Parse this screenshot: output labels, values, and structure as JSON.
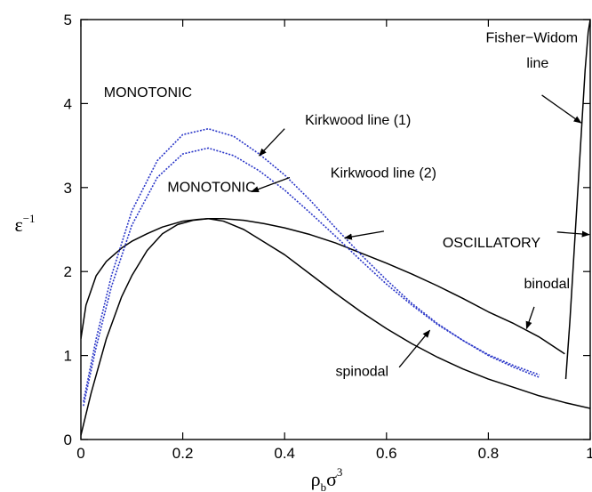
{
  "chart_data": {
    "type": "line",
    "xlim": [
      0,
      1
    ],
    "ylim": [
      0,
      5
    ],
    "x_ticks": [
      0,
      0.2,
      0.4,
      0.6,
      0.8,
      1
    ],
    "x_tick_labels": [
      "0",
      "0.2",
      "0.4",
      "0.6",
      "0.8",
      "1"
    ],
    "y_ticks": [
      0,
      1,
      2,
      3,
      4,
      5
    ],
    "y_tick_labels": [
      "0",
      "1",
      "2",
      "3",
      "4",
      "5"
    ],
    "xlabel": {
      "base": "ρ",
      "sub": "b",
      "mid": "σ",
      "sup": "3"
    },
    "ylabel": {
      "base": "ε",
      "sup": "−1"
    },
    "grid": false,
    "legend": "none",
    "series": [
      {
        "color": "#000000",
        "dash": "solid",
        "x": [
          0.0,
          0.01,
          0.03,
          0.05,
          0.08,
          0.1,
          0.13,
          0.16,
          0.2,
          0.23,
          0.25,
          0.28,
          0.32,
          0.36,
          0.4,
          0.45,
          0.5,
          0.55,
          0.6,
          0.65,
          0.7,
          0.75,
          0.8,
          0.85,
          0.9,
          0.95
        ],
        "y": [
          1.2,
          1.6,
          1.95,
          2.12,
          2.28,
          2.36,
          2.45,
          2.53,
          2.6,
          2.62,
          2.63,
          2.63,
          2.61,
          2.57,
          2.52,
          2.44,
          2.34,
          2.22,
          2.1,
          1.97,
          1.83,
          1.68,
          1.52,
          1.38,
          1.22,
          1.02
        ]
      },
      {
        "color": "#000000",
        "dash": "solid",
        "x": [
          0.0,
          0.02,
          0.05,
          0.08,
          0.1,
          0.13,
          0.16,
          0.19,
          0.22,
          0.25,
          0.28,
          0.32,
          0.36,
          0.4,
          0.45,
          0.5,
          0.55,
          0.6,
          0.65,
          0.7,
          0.75,
          0.8,
          0.85,
          0.9,
          0.95,
          1.0
        ],
        "y": [
          0.05,
          0.55,
          1.2,
          1.7,
          1.95,
          2.25,
          2.45,
          2.56,
          2.61,
          2.63,
          2.6,
          2.5,
          2.35,
          2.2,
          1.97,
          1.74,
          1.52,
          1.32,
          1.14,
          0.98,
          0.84,
          0.72,
          0.62,
          0.52,
          0.44,
          0.37
        ]
      },
      {
        "color": "#2a36c8",
        "dash": "dotted",
        "x": [
          0.005,
          0.03,
          0.06,
          0.1,
          0.15,
          0.2,
          0.25,
          0.3,
          0.35,
          0.4,
          0.45,
          0.5,
          0.55,
          0.6,
          0.65,
          0.7,
          0.75,
          0.8,
          0.85,
          0.9
        ],
        "y": [
          0.45,
          1.2,
          1.95,
          2.72,
          3.32,
          3.63,
          3.7,
          3.61,
          3.4,
          3.15,
          2.85,
          2.52,
          2.2,
          1.9,
          1.62,
          1.38,
          1.18,
          1.0,
          0.86,
          0.74
        ]
      },
      {
        "color": "#2a36c8",
        "dash": "dotted",
        "x": [
          0.005,
          0.03,
          0.06,
          0.1,
          0.15,
          0.2,
          0.25,
          0.3,
          0.35,
          0.4,
          0.45,
          0.5,
          0.55,
          0.6,
          0.65,
          0.7,
          0.75,
          0.8,
          0.85,
          0.9
        ],
        "y": [
          0.4,
          1.1,
          1.82,
          2.55,
          3.12,
          3.4,
          3.47,
          3.38,
          3.2,
          2.97,
          2.7,
          2.42,
          2.13,
          1.85,
          1.6,
          1.37,
          1.18,
          1.01,
          0.88,
          0.77
        ]
      },
      {
        "color": "#000000",
        "dash": "solid",
        "x": [
          0.952,
          0.96,
          0.968,
          0.976,
          0.984,
          0.99,
          0.996,
          1.0
        ],
        "y": [
          0.72,
          1.4,
          2.2,
          3.0,
          3.8,
          4.4,
          4.85,
          5.0
        ]
      }
    ],
    "annotations": [
      {
        "text": "MONOTONIC",
        "x": 0.045,
        "y": 4.08
      },
      {
        "text": "MONOTONIC",
        "x": 0.17,
        "y": 2.95
      },
      {
        "text": "OSCILLATORY",
        "x": 0.71,
        "y": 2.29
      },
      {
        "text": "Kirkwood line (1)",
        "x": 0.44,
        "y": 3.75
      },
      {
        "text": "Kirkwood line (2)",
        "x": 0.49,
        "y": 3.12
      },
      {
        "text": "Fisher−Widom",
        "x": 0.795,
        "y": 4.73
      },
      {
        "text": "line",
        "x": 0.875,
        "y": 4.43
      },
      {
        "text": "binodal",
        "x": 0.87,
        "y": 1.8
      },
      {
        "text": "spinodal",
        "x": 0.5,
        "y": 0.76
      }
    ],
    "arrows": [
      {
        "from": [
          0.4,
          3.7
        ],
        "to": [
          0.35,
          3.38
        ]
      },
      {
        "from": [
          0.41,
          3.12
        ],
        "to": [
          0.335,
          2.95
        ]
      },
      {
        "from": [
          0.595,
          2.48
        ],
        "to": [
          0.518,
          2.4
        ]
      },
      {
        "from": [
          0.935,
          2.47
        ],
        "to": [
          0.998,
          2.44
        ]
      },
      {
        "from": [
          0.905,
          4.1
        ],
        "to": [
          0.982,
          3.77
        ]
      },
      {
        "from": [
          0.89,
          1.58
        ],
        "to": [
          0.875,
          1.32
        ]
      },
      {
        "from": [
          0.625,
          0.86
        ],
        "to": [
          0.685,
          1.3
        ]
      }
    ]
  }
}
